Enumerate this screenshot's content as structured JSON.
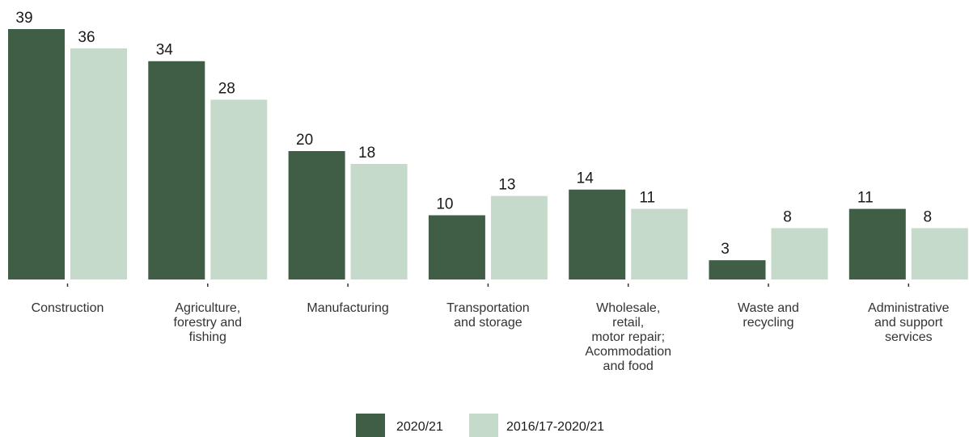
{
  "chart_data": {
    "type": "bar",
    "title": "",
    "xlabel": "",
    "ylabel": "",
    "categories": [
      [
        "Construction"
      ],
      [
        "Agriculture,",
        "forestry and",
        "fishing"
      ],
      [
        "Manufacturing"
      ],
      [
        "Transportation",
        "and storage"
      ],
      [
        "Wholesale,",
        "retail,",
        "motor repair;",
        "Acommodation",
        "and food"
      ],
      [
        "Waste and",
        "recycling"
      ],
      [
        "Administrative",
        "and support",
        "services"
      ]
    ],
    "series": [
      {
        "name": "2020/21",
        "color": "#3f5e45",
        "values": [
          39,
          34,
          20,
          10,
          14,
          3,
          11
        ]
      },
      {
        "name": "2016/17-2020/21",
        "color": "#c6dacb",
        "values": [
          36,
          28,
          18,
          13,
          11,
          8,
          8
        ]
      }
    ],
    "ylim": [
      0,
      39
    ],
    "grid": false,
    "legend_position": "bottom-center"
  }
}
